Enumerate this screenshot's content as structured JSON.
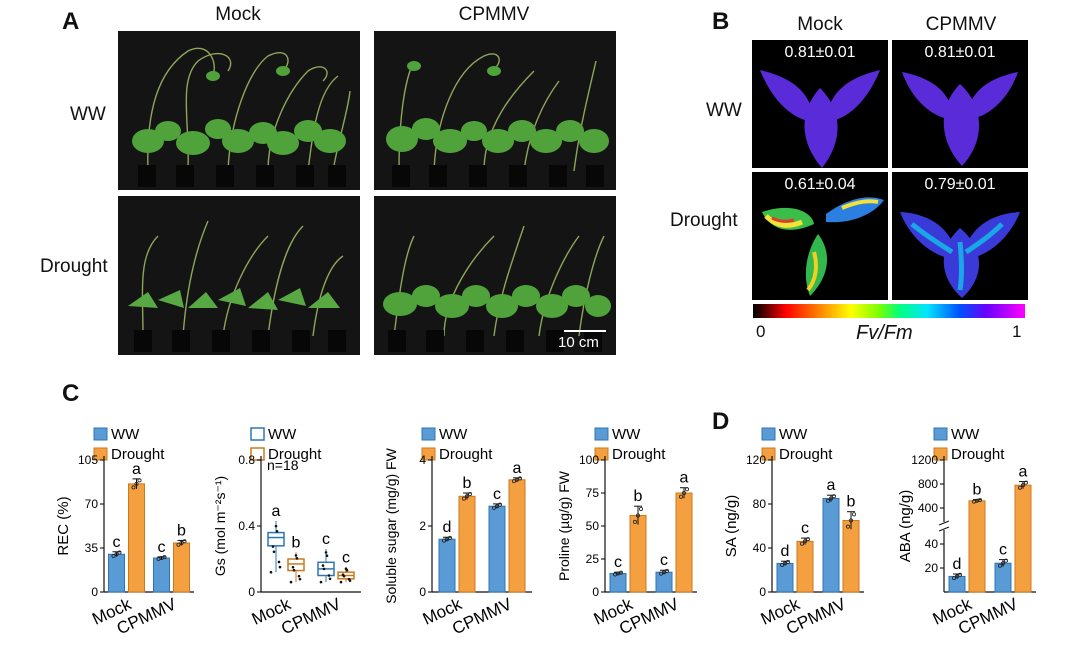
{
  "panels": {
    "a": "A",
    "b": "B",
    "c": "C",
    "d": "D"
  },
  "panelA": {
    "cols": [
      "Mock",
      "CPMMV"
    ],
    "rows": [
      "WW",
      "Drought"
    ],
    "scale_bar": "10 cm"
  },
  "panelB": {
    "cols": [
      "Mock",
      "CPMMV"
    ],
    "rows": [
      "WW",
      "Drought"
    ],
    "values": [
      "0.81±0.01",
      "0.81±0.01",
      "0.61±0.04",
      "0.79±0.01"
    ],
    "colorbar_min": "0",
    "colorbar_max": "1",
    "colorbar_label": "Fv/Fm"
  },
  "colors": {
    "ww": "#5b9bd5",
    "drought": "#f4a041",
    "ww_edge": "#2e75b6",
    "drought_edge": "#c97a1e"
  },
  "chart_data": [
    {
      "type": "bar",
      "categories": [
        "Mock",
        "CPMMV"
      ],
      "ylabel": "REC (%)",
      "ylim": [
        0,
        105
      ],
      "yticks": [
        "0",
        "35",
        "70",
        "105"
      ],
      "legend": [
        "WW",
        "Drought"
      ],
      "series": [
        {
          "name": "WW",
          "values": [
            30,
            27
          ],
          "err": [
            2,
            1
          ],
          "letters": [
            "c",
            "c"
          ]
        },
        {
          "name": "Drought",
          "values": [
            86,
            39
          ],
          "err": [
            4,
            2
          ],
          "letters": [
            "a",
            "b"
          ]
        }
      ]
    },
    {
      "type": "box",
      "categories": [
        "Mock",
        "CPMMV"
      ],
      "ylabel": "Gs (mol m⁻²s⁻¹)",
      "ylim": [
        0,
        0.8
      ],
      "yticks": [
        "0",
        "0.4",
        "0.8"
      ],
      "legend": [
        "WW",
        "Drought"
      ],
      "note": "n=18",
      "series": [
        {
          "name": "WW",
          "boxes": [
            [
              0.12,
              0.28,
              0.33,
              0.36,
              0.43
            ],
            [
              0.06,
              0.1,
              0.14,
              0.18,
              0.26
            ]
          ],
          "letters": [
            "a",
            "c"
          ]
        },
        {
          "name": "Drought",
          "boxes": [
            [
              0.06,
              0.13,
              0.17,
              0.2,
              0.24
            ],
            [
              0.06,
              0.08,
              0.1,
              0.12,
              0.15
            ]
          ],
          "letters": [
            "b",
            "c"
          ]
        }
      ]
    },
    {
      "type": "bar",
      "categories": [
        "Mock",
        "CPMMV"
      ],
      "ylabel": "Soluble sugar (mg/g) FW",
      "ylim": [
        0,
        4
      ],
      "yticks": [
        "0",
        "2",
        "4"
      ],
      "legend": [
        "WW",
        "Drought"
      ],
      "series": [
        {
          "name": "WW",
          "values": [
            1.6,
            2.6
          ],
          "err": [
            0.06,
            0.07
          ],
          "letters": [
            "d",
            "c"
          ]
        },
        {
          "name": "Drought",
          "values": [
            2.9,
            3.4
          ],
          "err": [
            0.1,
            0.06
          ],
          "letters": [
            "b",
            "a"
          ]
        }
      ]
    },
    {
      "type": "bar",
      "categories": [
        "Mock",
        "CPMMV"
      ],
      "ylabel": "Proline (µg/g) FW",
      "ylim": [
        0,
        100
      ],
      "yticks": [
        "0",
        "25",
        "50",
        "75",
        "100"
      ],
      "legend": [
        "WW",
        "Drought"
      ],
      "series": [
        {
          "name": "WW",
          "values": [
            14,
            15
          ],
          "err": [
            1,
            1.5
          ],
          "letters": [
            "c",
            "c"
          ]
        },
        {
          "name": "Drought",
          "values": [
            58,
            75
          ],
          "err": [
            7,
            4
          ],
          "letters": [
            "b",
            "a"
          ]
        }
      ]
    },
    {
      "type": "bar",
      "categories": [
        "Mock",
        "CPMMV"
      ],
      "ylabel": "SA (ng/g)",
      "ylim": [
        0,
        120
      ],
      "yticks": [
        "0",
        "40",
        "80",
        "120"
      ],
      "legend": [
        "WW",
        "Drought"
      ],
      "series": [
        {
          "name": "WW",
          "values": [
            26,
            85
          ],
          "err": [
            2,
            3
          ],
          "letters": [
            "d",
            "a"
          ]
        },
        {
          "name": "Drought",
          "values": [
            46,
            65
          ],
          "err": [
            3,
            8
          ],
          "letters": [
            "c",
            "b"
          ]
        }
      ]
    },
    {
      "type": "bar",
      "categories": [
        "Mock",
        "CPMMV"
      ],
      "ylabel": "ABA (ng/g)",
      "yaxis_break": true,
      "yticks_lower": [
        "20",
        "40"
      ],
      "yticks_upper": [
        "400",
        "800",
        "1200"
      ],
      "legend": [
        "WW",
        "Drought"
      ],
      "series": [
        {
          "name": "WW",
          "values": [
            13,
            24
          ],
          "err": [
            2,
            3
          ],
          "letters": [
            "d",
            "c"
          ]
        },
        {
          "name": "Drought",
          "values": [
            520,
            780
          ],
          "err": [
            20,
            60
          ],
          "letters": [
            "b",
            "a"
          ]
        }
      ]
    }
  ]
}
